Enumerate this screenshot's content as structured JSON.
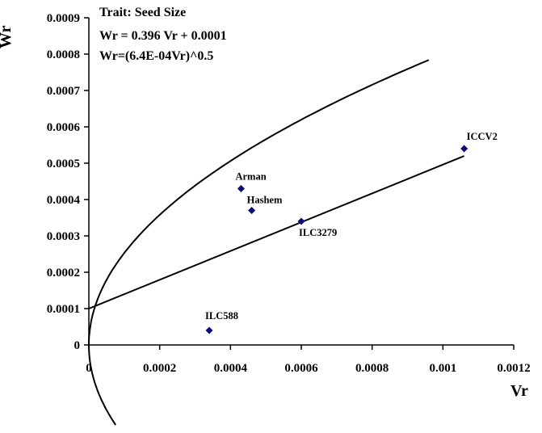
{
  "chart_data": {
    "type": "scatter",
    "xlabel": "Vr",
    "ylabel": "Wr",
    "xlim": [
      0,
      0.0012
    ],
    "ylim": [
      0,
      0.0009
    ],
    "x_ticks": [
      {
        "v": 0,
        "label": "0"
      },
      {
        "v": 0.0002,
        "label": "0.0002"
      },
      {
        "v": 0.0004,
        "label": "0.0004"
      },
      {
        "v": 0.0006,
        "label": "0.0006"
      },
      {
        "v": 0.0008,
        "label": "0.0008"
      },
      {
        "v": 0.001,
        "label": "0.001"
      },
      {
        "v": 0.0012,
        "label": "0.0012"
      }
    ],
    "y_ticks": [
      {
        "v": 0,
        "label": "0"
      },
      {
        "v": 0.0001,
        "label": "0.0001"
      },
      {
        "v": 0.0002,
        "label": "0.0002"
      },
      {
        "v": 0.0003,
        "label": "0.0003"
      },
      {
        "v": 0.0004,
        "label": "0.0004"
      },
      {
        "v": 0.0005,
        "label": "0.0005"
      },
      {
        "v": 0.0006,
        "label": "0.0006"
      },
      {
        "v": 0.0007,
        "label": "0.0007"
      },
      {
        "v": 0.0008,
        "label": "0.0008"
      },
      {
        "v": 0.0009,
        "label": "0.0009"
      }
    ],
    "annotations": [
      "Trait: Seed Size",
      "Wr = 0.396 Vr + 0.0001",
      "Wr=(6.4E-04Vr)^0.5"
    ],
    "points": [
      {
        "label": "Arman",
        "x": 0.00043,
        "y": 0.00043
      },
      {
        "label": "Hashem",
        "x": 0.00046,
        "y": 0.00037
      },
      {
        "label": "ILC3279",
        "x": 0.0006,
        "y": 0.00034
      },
      {
        "label": "ICCV2",
        "x": 0.00106,
        "y": 0.00054
      },
      {
        "label": "ILC588",
        "x": 0.00034,
        "y": 4e-05
      }
    ],
    "regression_line": {
      "slope": 0.396,
      "intercept": 0.0001,
      "x_range": [
        0,
        0.00106
      ]
    },
    "parabola": {
      "coef": 0.00064,
      "x_max": 0.00096,
      "y_min": -0.00022
    },
    "marker_color": "#0a0a78",
    "line_color": "#000000",
    "grid": false
  }
}
